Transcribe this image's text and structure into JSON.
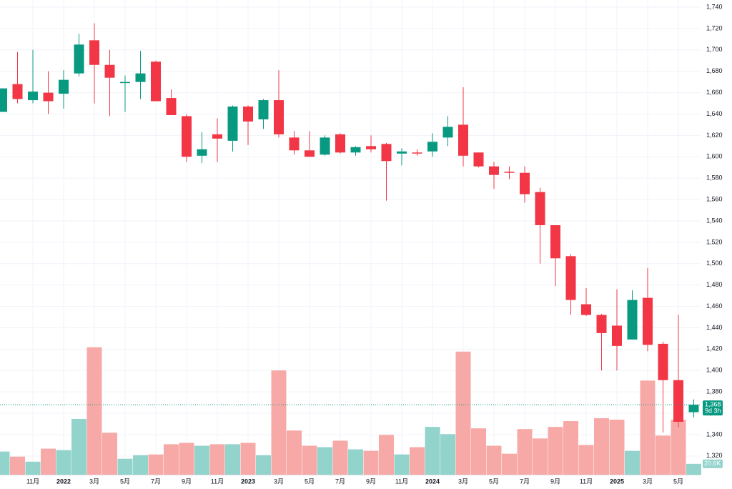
{
  "chart_data": {
    "type": "candlestick",
    "categories": [
      null,
      null,
      "11月",
      null,
      "2022",
      null,
      "3月",
      null,
      "5月",
      null,
      "7月",
      null,
      "9月",
      null,
      "11月",
      null,
      "2023",
      null,
      "3月",
      null,
      "5月",
      null,
      "7月",
      null,
      "9月",
      null,
      "11月",
      null,
      "2024",
      null,
      "3月",
      null,
      "5月",
      null,
      "7月",
      null,
      "9月",
      null,
      "11月",
      null,
      "2025",
      null,
      "3月",
      null,
      "5月",
      null
    ],
    "open": [
      1642,
      1668,
      1653,
      1660,
      1659,
      1678,
      1709,
      1686,
      1669,
      1670,
      1689,
      1655,
      1638,
      1601,
      1621,
      1615,
      1647,
      1635,
      1653,
      1618,
      1606,
      1602,
      1621,
      1604,
      1610,
      1612,
      1603,
      1604,
      1605,
      1618,
      1630,
      1604,
      1591,
      1586,
      1585,
      1567,
      1536,
      1507,
      1462,
      1452,
      1442,
      1429,
      1468,
      1425,
      1391,
      1361
    ],
    "high": [
      1664,
      1698,
      1700,
      1680,
      1681,
      1715,
      1725,
      1700,
      1676,
      1699,
      1690,
      1663,
      1640,
      1623,
      1636,
      1648,
      1648,
      1654,
      1681,
      1624,
      1624,
      1620,
      1622,
      1610,
      1620,
      1613,
      1608,
      1607,
      1622,
      1638,
      1665,
      1604,
      1595,
      1591,
      1591,
      1571,
      1536,
      1509,
      1477,
      1453,
      1476,
      1475,
      1496,
      1427,
      1452,
      1373
    ],
    "low": [
      1642,
      1650,
      1650,
      1640,
      1645,
      1675,
      1650,
      1638,
      1642,
      1654,
      1652,
      1639,
      1595,
      1594,
      1595,
      1605,
      1611,
      1626,
      1618,
      1602,
      1600,
      1601,
      1603,
      1601,
      1604,
      1559,
      1592,
      1601,
      1600,
      1610,
      1591,
      1590,
      1570,
      1579,
      1557,
      1500,
      1479,
      1452,
      1451,
      1400,
      1400,
      1429,
      1418,
      1342,
      1347,
      1356
    ],
    "close": [
      1664,
      1654,
      1661,
      1652,
      1672,
      1705,
      1686,
      1674,
      1670,
      1678,
      1652,
      1639,
      1600,
      1607,
      1617,
      1647,
      1633,
      1653,
      1621,
      1606,
      1600,
      1618,
      1604,
      1609,
      1607,
      1596,
      1605,
      1603,
      1614,
      1628,
      1601,
      1591,
      1583,
      1585,
      1565,
      1536,
      1505,
      1466,
      1452,
      1435,
      1423,
      1466,
      1424,
      1391,
      1352,
      1368
    ],
    "up_color": "#089981",
    "down_color": "#f23645",
    "volume": {
      "values": [
        43900,
        34300,
        24700,
        49400,
        46700,
        105700,
        241600,
        79600,
        30200,
        37100,
        38400,
        57700,
        60400,
        54900,
        57700,
        57700,
        60400,
        37100,
        197700,
        83800,
        54900,
        52200,
        64500,
        48100,
        45300,
        75500,
        38400,
        52200,
        90600,
        76900,
        233400,
        87900,
        54900,
        39800,
        86500,
        68700,
        90600,
        101600,
        56300,
        107100,
        104300,
        45300,
        178500,
        74100,
        104300,
        20600
      ],
      "value_labels": [
        null,
        null,
        null,
        null,
        null,
        null,
        null,
        null,
        null,
        null,
        null,
        null,
        null,
        null,
        null,
        null,
        null,
        null,
        null,
        null,
        null,
        null,
        null,
        null,
        null,
        null,
        null,
        null,
        null,
        null,
        null,
        null,
        null,
        null,
        null,
        null,
        null,
        null,
        null,
        null,
        null,
        null,
        null,
        null,
        null,
        "20.6K"
      ],
      "ylim": [
        0,
        900000
      ],
      "up_color": "#92d3cc",
      "down_color": "#f7a9a7"
    },
    "ylim": [
      1302.5,
      1746.7
    ],
    "yticks": [
      {
        "value": 1320,
        "label": "1,320"
      },
      {
        "value": 1340,
        "label": "1,340"
      },
      {
        "value": 1360,
        "label": "1,360"
      },
      {
        "value": 1380,
        "label": "1,380"
      },
      {
        "value": 1400,
        "label": "1,400"
      },
      {
        "value": 1420,
        "label": "1,420"
      },
      {
        "value": 1440,
        "label": "1,440"
      },
      {
        "value": 1460,
        "label": "1,460"
      },
      {
        "value": 1480,
        "label": "1,480"
      },
      {
        "value": 1500,
        "label": "1,500"
      },
      {
        "value": 1520,
        "label": "1,520"
      },
      {
        "value": 1540,
        "label": "1,540"
      },
      {
        "value": 1560,
        "label": "1,560"
      },
      {
        "value": 1580,
        "label": "1,580"
      },
      {
        "value": 1600,
        "label": "1,600"
      },
      {
        "value": 1620,
        "label": "1,620"
      },
      {
        "value": 1640,
        "label": "1,640"
      },
      {
        "value": 1660,
        "label": "1,660"
      },
      {
        "value": 1680,
        "label": "1,680"
      },
      {
        "value": 1700,
        "label": "1,700"
      },
      {
        "value": 1720,
        "label": "1,720"
      },
      {
        "value": 1740,
        "label": "1,740"
      }
    ],
    "last_price": {
      "value": 1368,
      "label": "1,368"
    },
    "countdown": "9d 3h",
    "grid": true
  }
}
